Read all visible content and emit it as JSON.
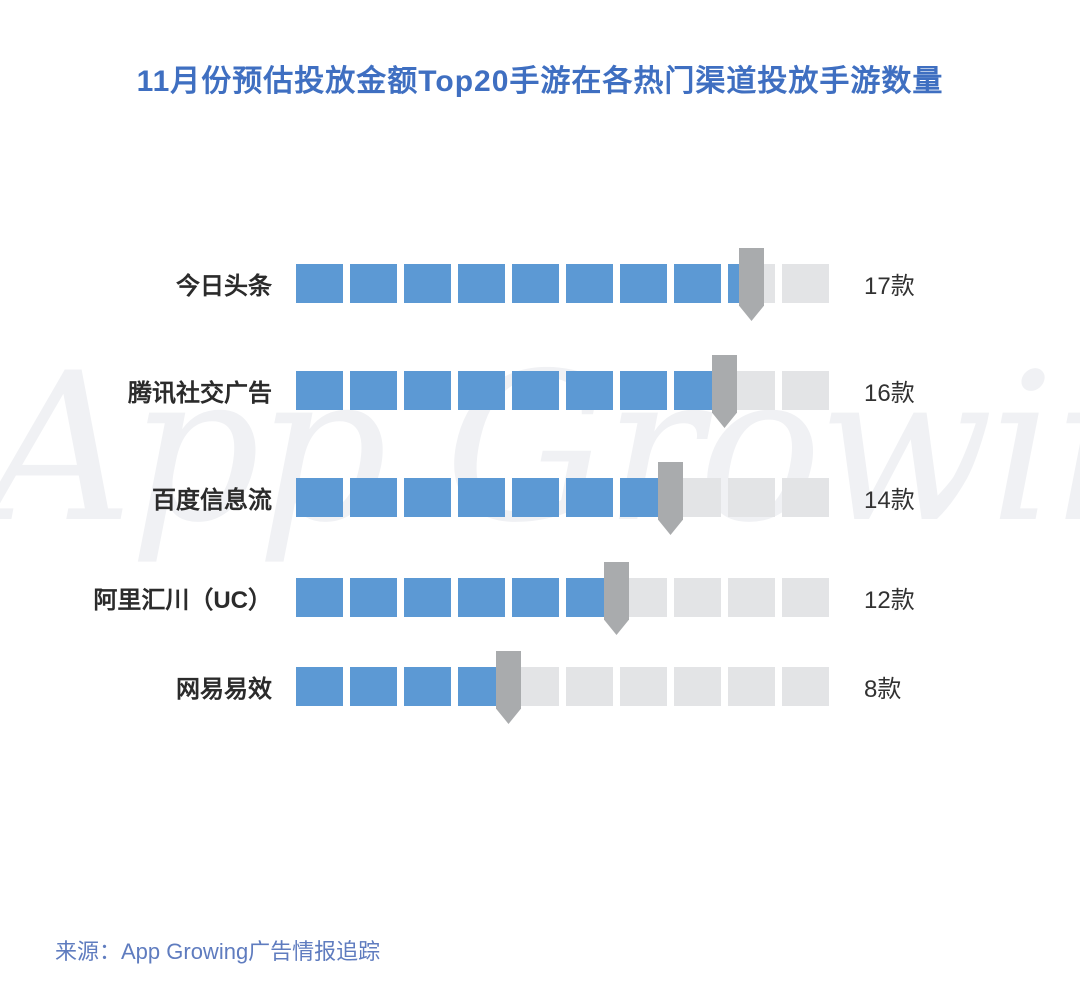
{
  "title": "11月份预估投放金额Top20手游在各热门渠道投放手游数量",
  "watermark": "App Growing",
  "source": "来源：App Growing广告情报追踪",
  "colors": {
    "title": "#3f6fc1",
    "bar_blue": "#5c99d4",
    "bar_gray": "#e3e4e6",
    "marker_gray": "#a9abad",
    "label_dark": "#2b2b2b",
    "source_blue": "#5f7cbf",
    "watermark": "#f0f1f4"
  },
  "chart_data": {
    "type": "bar",
    "orientation": "horizontal",
    "style": "pictogram of 10 squares per row, each square = 2 games, gray drop-pin marker at value position",
    "title": "11月份预估投放金额Top20手游在各热门渠道投放手游数量",
    "categories": [
      "今日头条",
      "腾讯社交广告",
      "百度信息流",
      "阿里汇川（UC）",
      "网易易效"
    ],
    "values": [
      17,
      16,
      14,
      12,
      8
    ],
    "value_labels": [
      "17款",
      "16款",
      "14款",
      "12款",
      "8款"
    ],
    "unit": "款",
    "xlabel": "",
    "ylabel": "",
    "xlim": [
      0,
      20
    ],
    "squares_per_track": 10,
    "units_per_square": 2,
    "legend": "none",
    "grid": false
  }
}
